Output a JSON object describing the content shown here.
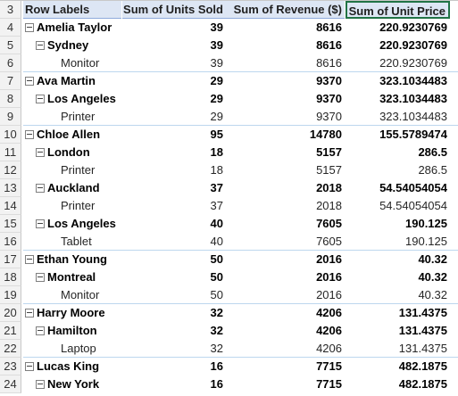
{
  "header": {
    "row_num": "3",
    "row_labels": "Row Labels",
    "units": "Sum of Units Sold",
    "revenue": "Sum of Revenue ($)",
    "unit_price": "Sum of Unit Price"
  },
  "rows": [
    {
      "num": "4",
      "label": "Amelia Taylor",
      "units": "39",
      "revenue": "8616",
      "price": "220.9230769"
    },
    {
      "num": "5",
      "label": "Sydney",
      "units": "39",
      "revenue": "8616",
      "price": "220.9230769"
    },
    {
      "num": "6",
      "label": "Monitor",
      "units": "39",
      "revenue": "8616",
      "price": "220.9230769"
    },
    {
      "num": "7",
      "label": "Ava Martin",
      "units": "29",
      "revenue": "9370",
      "price": "323.1034483"
    },
    {
      "num": "8",
      "label": "Los Angeles",
      "units": "29",
      "revenue": "9370",
      "price": "323.1034483"
    },
    {
      "num": "9",
      "label": "Printer",
      "units": "29",
      "revenue": "9370",
      "price": "323.1034483"
    },
    {
      "num": "10",
      "label": "Chloe Allen",
      "units": "95",
      "revenue": "14780",
      "price": "155.5789474"
    },
    {
      "num": "11",
      "label": "London",
      "units": "18",
      "revenue": "5157",
      "price": "286.5"
    },
    {
      "num": "12",
      "label": "Printer",
      "units": "18",
      "revenue": "5157",
      "price": "286.5"
    },
    {
      "num": "13",
      "label": "Auckland",
      "units": "37",
      "revenue": "2018",
      "price": "54.54054054"
    },
    {
      "num": "14",
      "label": "Printer",
      "units": "37",
      "revenue": "2018",
      "price": "54.54054054"
    },
    {
      "num": "15",
      "label": "Los Angeles",
      "units": "40",
      "revenue": "7605",
      "price": "190.125"
    },
    {
      "num": "16",
      "label": "Tablet",
      "units": "40",
      "revenue": "7605",
      "price": "190.125"
    },
    {
      "num": "17",
      "label": "Ethan Young",
      "units": "50",
      "revenue": "2016",
      "price": "40.32"
    },
    {
      "num": "18",
      "label": "Montreal",
      "units": "50",
      "revenue": "2016",
      "price": "40.32"
    },
    {
      "num": "19",
      "label": "Monitor",
      "units": "50",
      "revenue": "2016",
      "price": "40.32"
    },
    {
      "num": "20",
      "label": "Harry Moore",
      "units": "32",
      "revenue": "4206",
      "price": "131.4375"
    },
    {
      "num": "21",
      "label": "Hamilton",
      "units": "32",
      "revenue": "4206",
      "price": "131.4375"
    },
    {
      "num": "22",
      "label": "Laptop",
      "units": "32",
      "revenue": "4206",
      "price": "131.4375"
    },
    {
      "num": "23",
      "label": "Lucas King",
      "units": "16",
      "revenue": "7715",
      "price": "482.1875"
    },
    {
      "num": "24",
      "label": "New York",
      "units": "16",
      "revenue": "7715",
      "price": "482.1875"
    }
  ]
}
